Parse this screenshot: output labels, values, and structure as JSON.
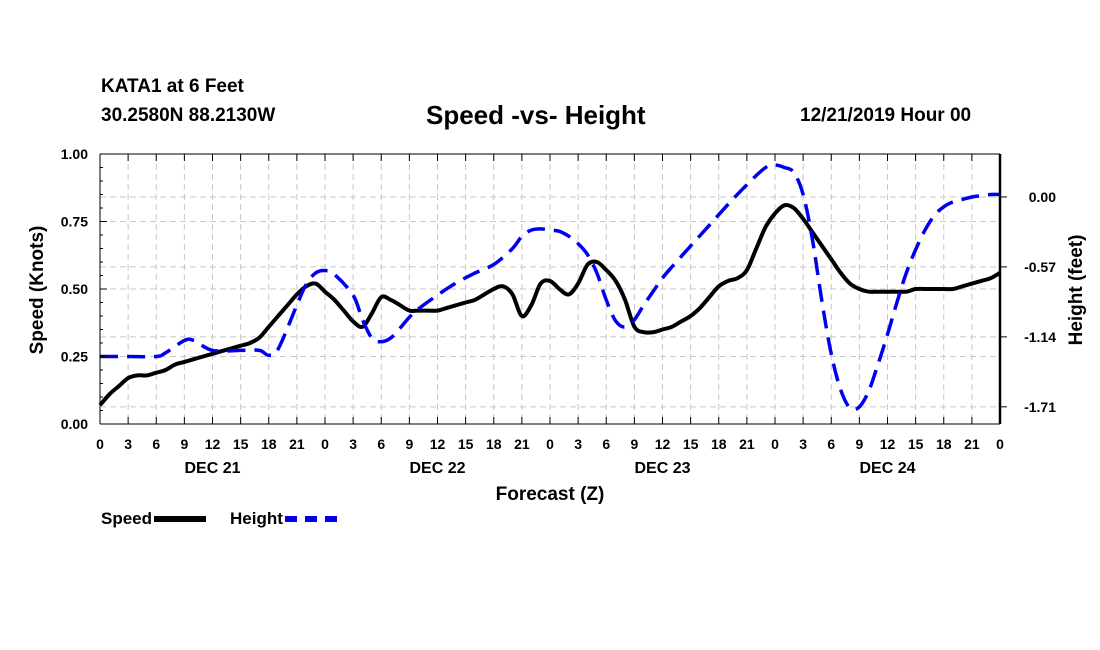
{
  "header": {
    "station": "KATA1 at 6 Feet",
    "coords": "30.2580N 88.2130W",
    "title": "Speed -vs- Height",
    "timestamp": "12/21/2019 Hour 00"
  },
  "legend": {
    "speed": "Speed",
    "height": "Height"
  },
  "colors": {
    "speed": "#000000",
    "height": "#0000ee",
    "grid": "#c8c8c8"
  },
  "chart_data": {
    "type": "line",
    "title": "Speed -vs- Height",
    "xlabel": "Forecast (Z)",
    "ylabel": "Speed (Knots)",
    "y2label": "Height (feet)",
    "xlim": [
      0,
      96
    ],
    "ylim": [
      0,
      1
    ],
    "y2lim": [
      -1.85,
      0.35
    ],
    "grid": true,
    "x_ticks": [
      0,
      3,
      6,
      9,
      12,
      15,
      18,
      21,
      24,
      27,
      30,
      33,
      36,
      39,
      42,
      45,
      48,
      51,
      54,
      57,
      60,
      63,
      66,
      69,
      72,
      75,
      78,
      81,
      84,
      87,
      90,
      93,
      96
    ],
    "x_tick_labels": [
      "0",
      "3",
      "6",
      "9",
      "12",
      "15",
      "18",
      "21",
      "0",
      "3",
      "6",
      "9",
      "12",
      "15",
      "18",
      "21",
      "0",
      "3",
      "6",
      "9",
      "12",
      "15",
      "18",
      "21",
      "0",
      "3",
      "6",
      "9",
      "12",
      "15",
      "18",
      "21",
      "0"
    ],
    "day_labels": [
      {
        "text": "DEC 21",
        "at": 12
      },
      {
        "text": "DEC 22",
        "at": 36
      },
      {
        "text": "DEC 23",
        "at": 60
      },
      {
        "text": "DEC 24",
        "at": 84
      }
    ],
    "y_ticks": [
      0,
      0.25,
      0.5,
      0.75,
      1.0
    ],
    "y_tick_labels": [
      "0.00",
      "0.25",
      "0.50",
      "0.75",
      "1.00"
    ],
    "y2_ticks": [
      0.0,
      -0.57,
      -1.14,
      -1.71
    ],
    "y2_tick_labels": [
      "0.00",
      "-0.57",
      "-1.14",
      "-1.71"
    ],
    "series": [
      {
        "name": "Speed",
        "axis": "left",
        "style": "solid",
        "x": [
          0,
          1,
          2,
          3,
          4,
          5,
          6,
          7,
          8,
          9,
          10,
          11,
          12,
          13,
          14,
          15,
          16,
          17,
          18,
          19,
          20,
          21,
          22,
          23,
          24,
          25,
          26,
          27,
          28,
          29,
          30,
          31,
          32,
          33,
          34,
          35,
          36,
          37,
          38,
          39,
          40,
          41,
          42,
          43,
          44,
          45,
          46,
          47,
          48,
          49,
          50,
          51,
          52,
          53,
          54,
          55,
          56,
          57,
          58,
          59,
          60,
          61,
          62,
          63,
          64,
          65,
          66,
          67,
          68,
          69,
          70,
          71,
          72,
          73,
          74,
          75,
          76,
          77,
          78,
          79,
          80,
          81,
          82,
          83,
          84,
          85,
          86,
          87,
          88,
          89,
          90,
          91,
          92,
          93,
          94,
          95,
          96
        ],
        "values": [
          0.07,
          0.11,
          0.14,
          0.17,
          0.18,
          0.18,
          0.19,
          0.2,
          0.22,
          0.23,
          0.24,
          0.25,
          0.26,
          0.27,
          0.28,
          0.29,
          0.3,
          0.32,
          0.36,
          0.4,
          0.44,
          0.48,
          0.51,
          0.52,
          0.49,
          0.46,
          0.42,
          0.38,
          0.36,
          0.41,
          0.47,
          0.46,
          0.44,
          0.42,
          0.42,
          0.42,
          0.42,
          0.43,
          0.44,
          0.45,
          0.46,
          0.48,
          0.5,
          0.51,
          0.48,
          0.4,
          0.44,
          0.52,
          0.53,
          0.5,
          0.48,
          0.52,
          0.59,
          0.6,
          0.57,
          0.53,
          0.46,
          0.36,
          0.34,
          0.34,
          0.35,
          0.36,
          0.38,
          0.4,
          0.43,
          0.47,
          0.51,
          0.53,
          0.54,
          0.57,
          0.65,
          0.73,
          0.78,
          0.81,
          0.8,
          0.76,
          0.71,
          0.66,
          0.61,
          0.56,
          0.52,
          0.5,
          0.49,
          0.49,
          0.49,
          0.49,
          0.49,
          0.5,
          0.5,
          0.5,
          0.5,
          0.5,
          0.51,
          0.52,
          0.53,
          0.54,
          0.56
        ]
      },
      {
        "name": "Height",
        "axis": "right",
        "style": "dashed",
        "x": [
          0,
          3,
          6,
          7,
          9,
          10,
          12,
          15,
          17,
          18,
          19,
          21,
          22,
          23,
          24,
          25,
          27,
          28,
          29,
          30,
          31,
          32,
          33,
          34,
          36,
          38,
          40,
          42,
          44,
          45,
          46,
          47,
          48,
          49,
          50,
          51,
          52,
          53,
          54,
          55,
          56,
          57,
          58,
          59,
          60,
          61,
          63,
          65,
          67,
          69,
          71,
          72,
          73,
          74,
          75,
          76,
          77,
          78,
          79,
          80,
          81,
          82,
          83,
          84,
          85,
          86,
          87,
          88,
          89,
          90,
          91,
          92,
          93,
          94,
          95,
          96
        ],
        "values": [
          -1.3,
          -1.3,
          -1.3,
          -1.27,
          -1.17,
          -1.17,
          -1.25,
          -1.25,
          -1.25,
          -1.29,
          -1.24,
          -0.88,
          -0.71,
          -0.62,
          -0.6,
          -0.63,
          -0.8,
          -1.0,
          -1.15,
          -1.18,
          -1.15,
          -1.07,
          -0.98,
          -0.91,
          -0.8,
          -0.7,
          -0.62,
          -0.55,
          -0.42,
          -0.32,
          -0.27,
          -0.26,
          -0.27,
          -0.28,
          -0.32,
          -0.38,
          -0.47,
          -0.62,
          -0.84,
          -1.01,
          -1.06,
          -1.0,
          -0.88,
          -0.77,
          -0.66,
          -0.57,
          -0.4,
          -0.23,
          -0.06,
          0.1,
          0.24,
          0.26,
          0.24,
          0.2,
          0.02,
          -0.35,
          -0.85,
          -1.28,
          -1.57,
          -1.72,
          -1.71,
          -1.58,
          -1.36,
          -1.12,
          -0.86,
          -0.62,
          -0.43,
          -0.27,
          -0.15,
          -0.08,
          -0.04,
          -0.02,
          0.0,
          0.01,
          0.02,
          0.02
        ]
      }
    ]
  }
}
